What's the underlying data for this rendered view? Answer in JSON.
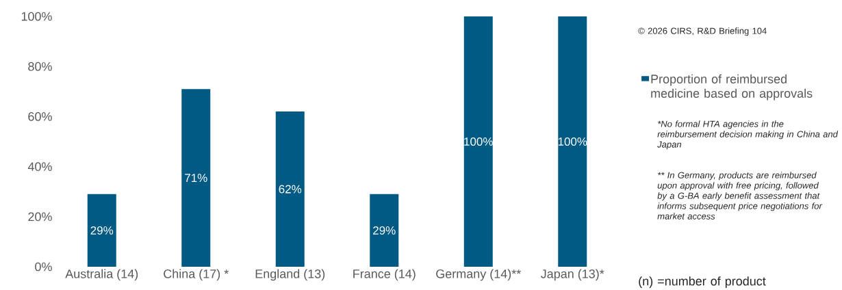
{
  "chart_data": {
    "type": "bar",
    "categories": [
      "Australia (14)",
      "China (17) *",
      "England (13)",
      "France (14)",
      "Germany (14)**",
      "Japan (13)*"
    ],
    "series": [
      {
        "name": "Proportion of reimbursed medicine based on approvals",
        "color": "#005a84",
        "values": [
          29,
          71,
          62,
          29,
          100,
          100
        ],
        "value_labels": [
          "29%",
          "71%",
          "62%",
          "29%",
          "100%",
          "100%"
        ]
      }
    ],
    "ylim": [
      0,
      100
    ],
    "yticks": [
      {
        "value": 0,
        "label": "0%"
      },
      {
        "value": 20,
        "label": "20%"
      },
      {
        "value": 40,
        "label": "40%"
      },
      {
        "value": 60,
        "label": "60%"
      },
      {
        "value": 80,
        "label": "80%"
      },
      {
        "value": 100,
        "label": "100%"
      }
    ],
    "legend": "right",
    "grid": false,
    "annotations": [
      "© 2026 CIRS, R&D Briefing 104",
      "*No formal HTA agencies in the reimbursement decision making in China and Japan",
      "** In Germany, products are reimbursed upon approval with free pricing, followed by a G-BA early benefit assessment that informs subsequent price negotiations for market access",
      "(n) =number of product"
    ]
  }
}
